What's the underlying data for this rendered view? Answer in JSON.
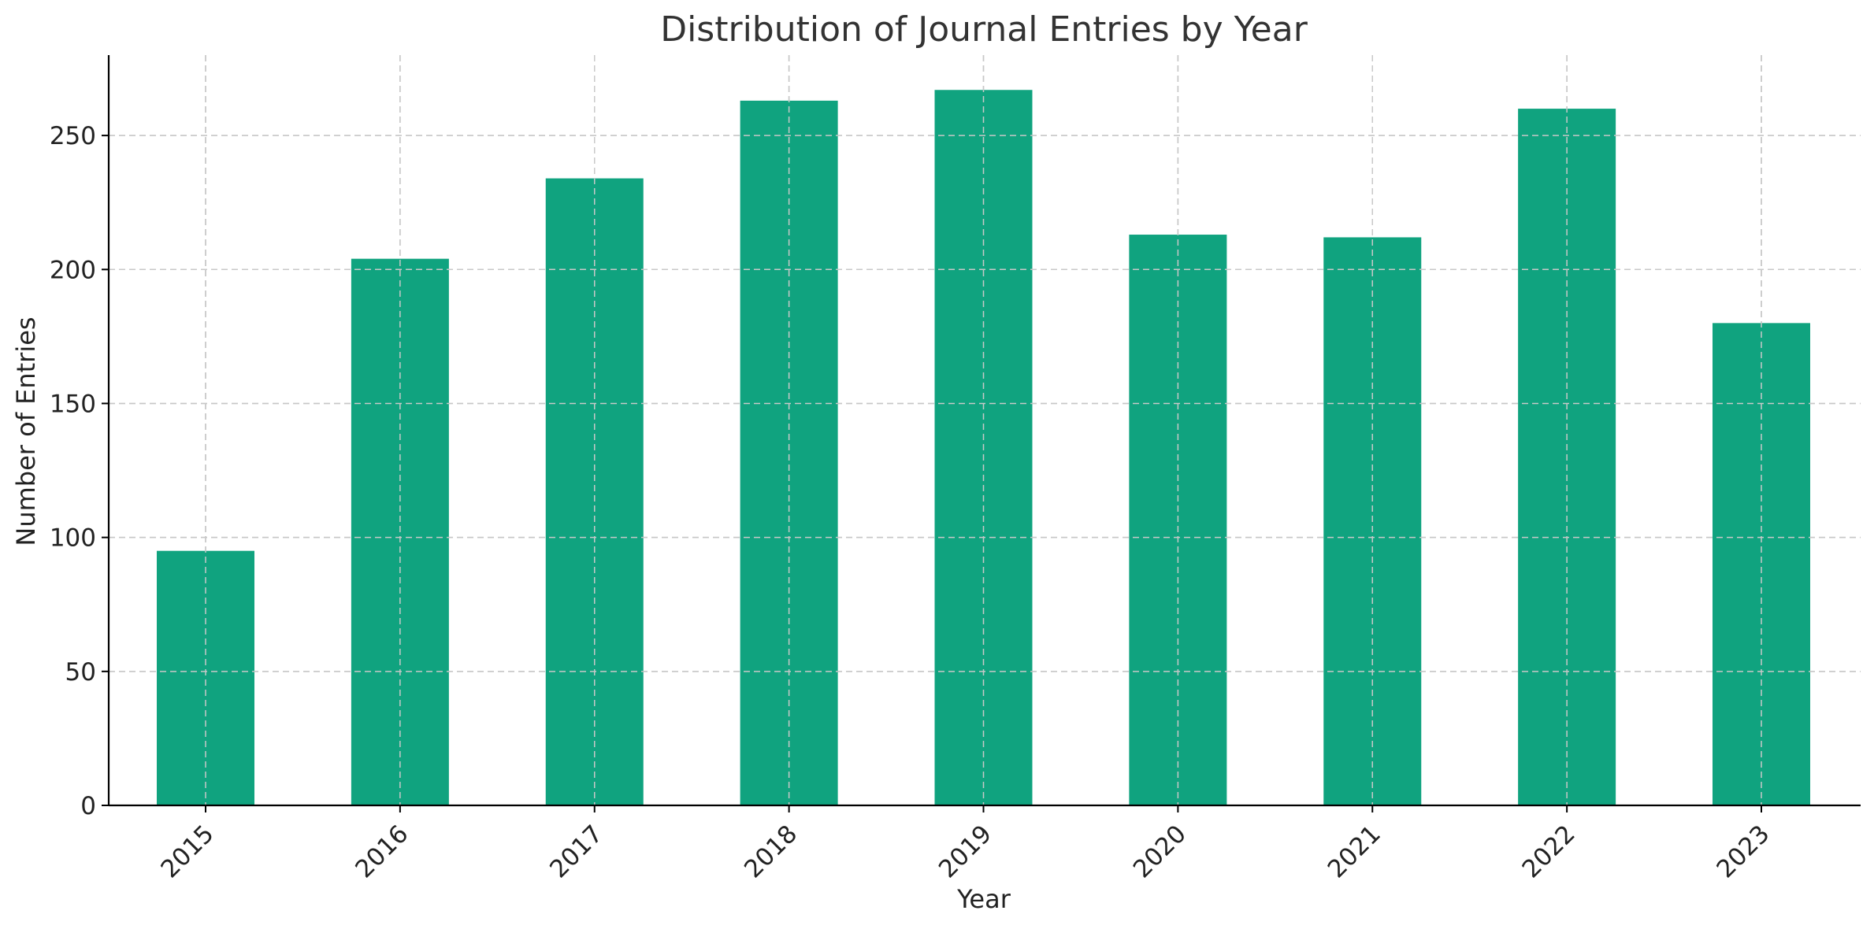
{
  "chart_data": {
    "type": "bar",
    "title": "Distribution of Journal Entries by Year",
    "xlabel": "Year",
    "ylabel": "Number of Entries",
    "categories": [
      "2015",
      "2016",
      "2017",
      "2018",
      "2019",
      "2020",
      "2021",
      "2022",
      "2023"
    ],
    "values": [
      95,
      204,
      234,
      263,
      267,
      213,
      212,
      260,
      180
    ],
    "ylim": [
      0,
      280
    ],
    "yticks": [
      0,
      50,
      100,
      150,
      200,
      250
    ],
    "grid": true,
    "bar_color": "#10a37f"
  }
}
